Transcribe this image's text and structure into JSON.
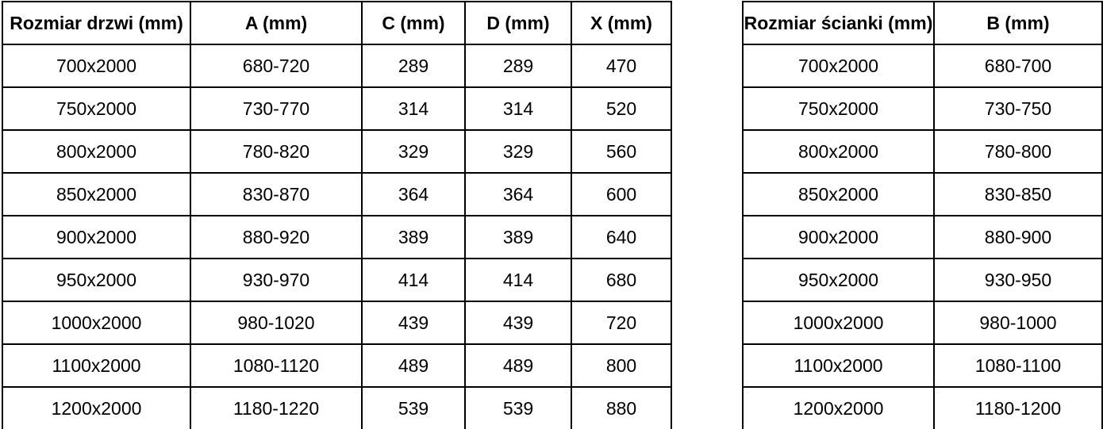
{
  "colors": {
    "background": "#ffffff",
    "border": "#000000",
    "text": "#000000"
  },
  "tables": [
    {
      "name": "door-size-table",
      "headers": [
        "Rozmiar drzwi (mm)",
        "A (mm)",
        "C (mm)",
        "D (mm)",
        "X (mm)"
      ],
      "rows": [
        [
          "700x2000",
          "680-720",
          "289",
          "289",
          "470"
        ],
        [
          "750x2000",
          "730-770",
          "314",
          "314",
          "520"
        ],
        [
          "800x2000",
          "780-820",
          "329",
          "329",
          "560"
        ],
        [
          "850x2000",
          "830-870",
          "364",
          "364",
          "600"
        ],
        [
          "900x2000",
          "880-920",
          "389",
          "389",
          "640"
        ],
        [
          "950x2000",
          "930-970",
          "414",
          "414",
          "680"
        ],
        [
          "1000x2000",
          "980-1020",
          "439",
          "439",
          "720"
        ],
        [
          "1100x2000",
          "1080-1120",
          "489",
          "489",
          "800"
        ],
        [
          "1200x2000",
          "1180-1220",
          "539",
          "539",
          "880"
        ]
      ]
    },
    {
      "name": "wall-size-table",
      "headers": [
        "Rozmiar ścianki (mm)",
        "B (mm)"
      ],
      "rows": [
        [
          "700x2000",
          "680-700"
        ],
        [
          "750x2000",
          "730-750"
        ],
        [
          "800x2000",
          "780-800"
        ],
        [
          "850x2000",
          "830-850"
        ],
        [
          "900x2000",
          "880-900"
        ],
        [
          "950x2000",
          "930-950"
        ],
        [
          "1000x2000",
          "980-1000"
        ],
        [
          "1100x2000",
          "1080-1100"
        ],
        [
          "1200x2000",
          "1180-1200"
        ]
      ]
    }
  ]
}
